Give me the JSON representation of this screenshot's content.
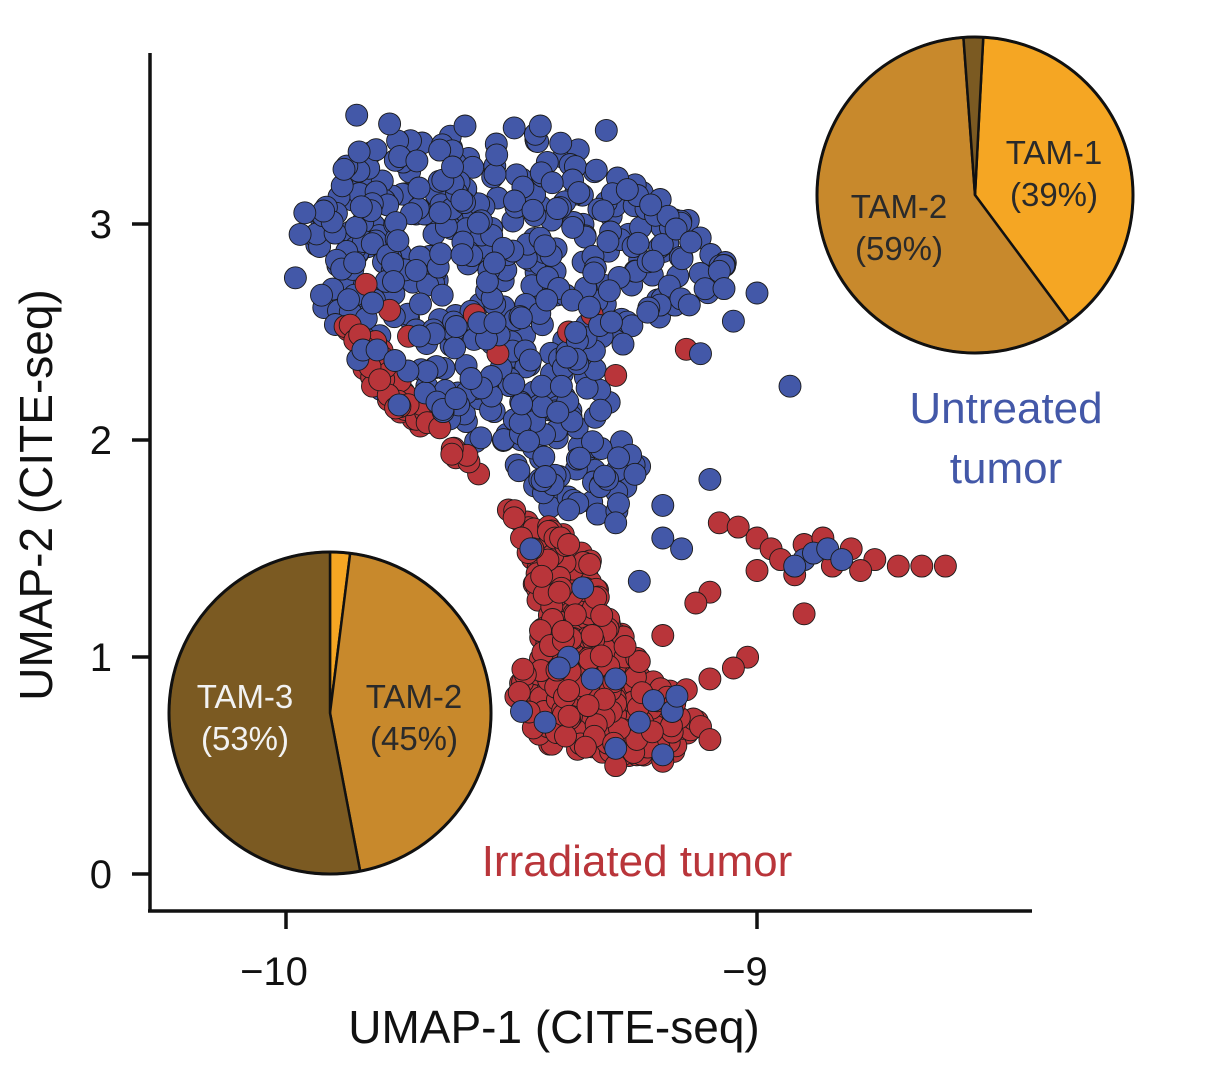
{
  "chart_data": {
    "type": "scatter",
    "title": "",
    "xlabel": "UMAP-1 (CITE-seq)",
    "ylabel": "UMAP-2 (CITE-seq)",
    "xlim": [
      -10.3,
      -8.4
    ],
    "ylim": [
      -0.15,
      3.8
    ],
    "xticks": [
      -10,
      -9
    ],
    "xtick_labels": [
      "−10",
      "−9"
    ],
    "yticks": [
      0,
      1,
      2,
      3
    ],
    "ytick_labels": [
      "0",
      "1",
      "2",
      "3"
    ],
    "grid": false,
    "colors": {
      "untreated": "#4358a8",
      "irradiated": "#b9353a",
      "tam1": "#f5a623",
      "tam2": "#c8892c",
      "tam3": "#7b5a22",
      "edge": "#1a1a1a"
    },
    "series": [
      {
        "name": "Untreated tumor",
        "color": "#4358a8",
        "cluster_shape": [
          [
            -9.91,
            3.15
          ],
          [
            -9.87,
            3.32
          ],
          [
            -9.7,
            3.42
          ],
          [
            -9.52,
            3.45
          ],
          [
            -9.38,
            3.35
          ],
          [
            -9.25,
            3.2
          ],
          [
            -9.12,
            3.0
          ],
          [
            -9.06,
            2.8
          ],
          [
            -9.12,
            2.62
          ],
          [
            -9.25,
            2.52
          ],
          [
            -9.32,
            2.3
          ],
          [
            -9.3,
            2.05
          ],
          [
            -9.22,
            1.8
          ],
          [
            -9.3,
            1.6
          ],
          [
            -9.45,
            1.65
          ],
          [
            -9.55,
            1.95
          ],
          [
            -9.7,
            2.05
          ],
          [
            -9.85,
            2.3
          ],
          [
            -9.92,
            2.6
          ],
          [
            -9.95,
            2.85
          ]
        ],
        "points": [
          [
            -9.98,
            2.75
          ],
          [
            -9.97,
            2.95
          ],
          [
            -9.96,
            3.05
          ],
          [
            -9.85,
            3.5
          ],
          [
            -9.78,
            3.46
          ],
          [
            -9.62,
            3.45
          ],
          [
            -9.46,
            3.45
          ],
          [
            -9.32,
            3.43
          ],
          [
            -9.08,
            2.78
          ],
          [
            -9.07,
            2.7
          ],
          [
            -9.0,
            2.68
          ],
          [
            -8.93,
            2.25
          ],
          [
            -9.05,
            2.55
          ],
          [
            -9.12,
            2.4
          ],
          [
            -9.1,
            1.82
          ],
          [
            -9.16,
            1.5
          ],
          [
            -9.2,
            1.55
          ],
          [
            -9.25,
            1.35
          ],
          [
            -9.3,
            1.62
          ],
          [
            -9.37,
            1.32
          ],
          [
            -9.48,
            1.5
          ],
          [
            -9.4,
            1.68
          ],
          [
            -9.2,
            1.7
          ],
          [
            -8.9,
            1.45
          ],
          [
            -8.88,
            1.48
          ],
          [
            -8.85,
            1.5
          ],
          [
            -8.92,
            1.42
          ],
          [
            -8.82,
            1.45
          ],
          [
            -9.4,
            1.0
          ],
          [
            -9.42,
            0.95
          ],
          [
            -9.35,
            0.9
          ],
          [
            -9.3,
            0.9
          ],
          [
            -9.22,
            0.8
          ],
          [
            -9.18,
            0.75
          ],
          [
            -9.25,
            0.7
          ],
          [
            -9.2,
            0.55
          ],
          [
            -9.3,
            0.58
          ],
          [
            -9.5,
            0.75
          ],
          [
            -9.45,
            0.7
          ],
          [
            -9.17,
            0.82
          ]
        ]
      },
      {
        "name": "Irradiated tumor",
        "color": "#b9353a",
        "cluster_shape": [
          [
            -9.88,
            2.55
          ],
          [
            -9.82,
            2.25
          ],
          [
            -9.72,
            2.05
          ],
          [
            -9.6,
            1.85
          ],
          [
            -9.52,
            1.6
          ],
          [
            -9.48,
            1.4
          ],
          [
            -9.46,
            1.15
          ],
          [
            -9.52,
            0.85
          ],
          [
            -9.46,
            0.6
          ],
          [
            -9.3,
            0.53
          ],
          [
            -9.18,
            0.55
          ],
          [
            -9.12,
            0.72
          ],
          [
            -9.22,
            0.92
          ],
          [
            -9.32,
            1.2
          ],
          [
            -9.36,
            1.5
          ],
          [
            -9.45,
            1.62
          ],
          [
            -9.55,
            1.72
          ],
          [
            -9.62,
            1.95
          ],
          [
            -9.72,
            2.2
          ],
          [
            -9.82,
            2.5
          ]
        ],
        "points": [
          [
            -9.83,
            2.72
          ],
          [
            -9.78,
            2.6
          ],
          [
            -9.74,
            2.48
          ],
          [
            -9.6,
            2.58
          ],
          [
            -9.55,
            2.4
          ],
          [
            -9.4,
            2.5
          ],
          [
            -9.35,
            2.58
          ],
          [
            -9.3,
            2.3
          ],
          [
            -9.15,
            2.42
          ],
          [
            -9.08,
            1.62
          ],
          [
            -9.04,
            1.6
          ],
          [
            -9.0,
            1.55
          ],
          [
            -8.97,
            1.5
          ],
          [
            -8.95,
            1.45
          ],
          [
            -8.9,
            1.52
          ],
          [
            -8.86,
            1.55
          ],
          [
            -8.8,
            1.5
          ],
          [
            -8.75,
            1.45
          ],
          [
            -8.7,
            1.42
          ],
          [
            -8.65,
            1.42
          ],
          [
            -8.6,
            1.42
          ],
          [
            -8.78,
            1.4
          ],
          [
            -8.84,
            1.42
          ],
          [
            -8.92,
            1.38
          ],
          [
            -9.0,
            1.4
          ],
          [
            -8.9,
            1.2
          ],
          [
            -9.1,
            1.3
          ],
          [
            -9.13,
            1.25
          ],
          [
            -9.2,
            1.1
          ],
          [
            -9.25,
            0.98
          ],
          [
            -9.28,
            1.05
          ],
          [
            -9.02,
            1.0
          ],
          [
            -9.05,
            0.95
          ],
          [
            -9.1,
            0.9
          ],
          [
            -9.15,
            0.85
          ],
          [
            -9.18,
            0.75
          ],
          [
            -9.12,
            0.68
          ],
          [
            -9.1,
            0.62
          ],
          [
            -9.2,
            0.52
          ],
          [
            -9.3,
            0.5
          ],
          [
            -9.35,
            1.1
          ],
          [
            -9.42,
            1.3
          ],
          [
            -9.5,
            1.55
          ],
          [
            -9.4,
            1.52
          ]
        ]
      }
    ],
    "insets": [
      {
        "group": "Untreated tumor",
        "label": "Untreated tumor",
        "label_lines": [
          "Untreated",
          "tumor"
        ],
        "slices": [
          {
            "name": "TAM-1",
            "percent": 39,
            "text": "(39%)",
            "color": "#f5a623"
          },
          {
            "name": "TAM-2",
            "percent": 59,
            "text": "(59%)",
            "color": "#c8892c"
          },
          {
            "name": "TAM-3",
            "percent": 2,
            "text": "",
            "color": "#7b5a22"
          }
        ]
      },
      {
        "group": "Irradiated tumor",
        "label": "Irradiated tumor",
        "label_lines": [
          "Irradiated tumor"
        ],
        "slices": [
          {
            "name": "TAM-1",
            "percent": 2,
            "text": "",
            "color": "#f5a623"
          },
          {
            "name": "TAM-2",
            "percent": 45,
            "text": "(45%)",
            "color": "#c8892c"
          },
          {
            "name": "TAM-3",
            "percent": 53,
            "text": "(53%)",
            "color": "#7b5a22"
          }
        ]
      }
    ]
  }
}
